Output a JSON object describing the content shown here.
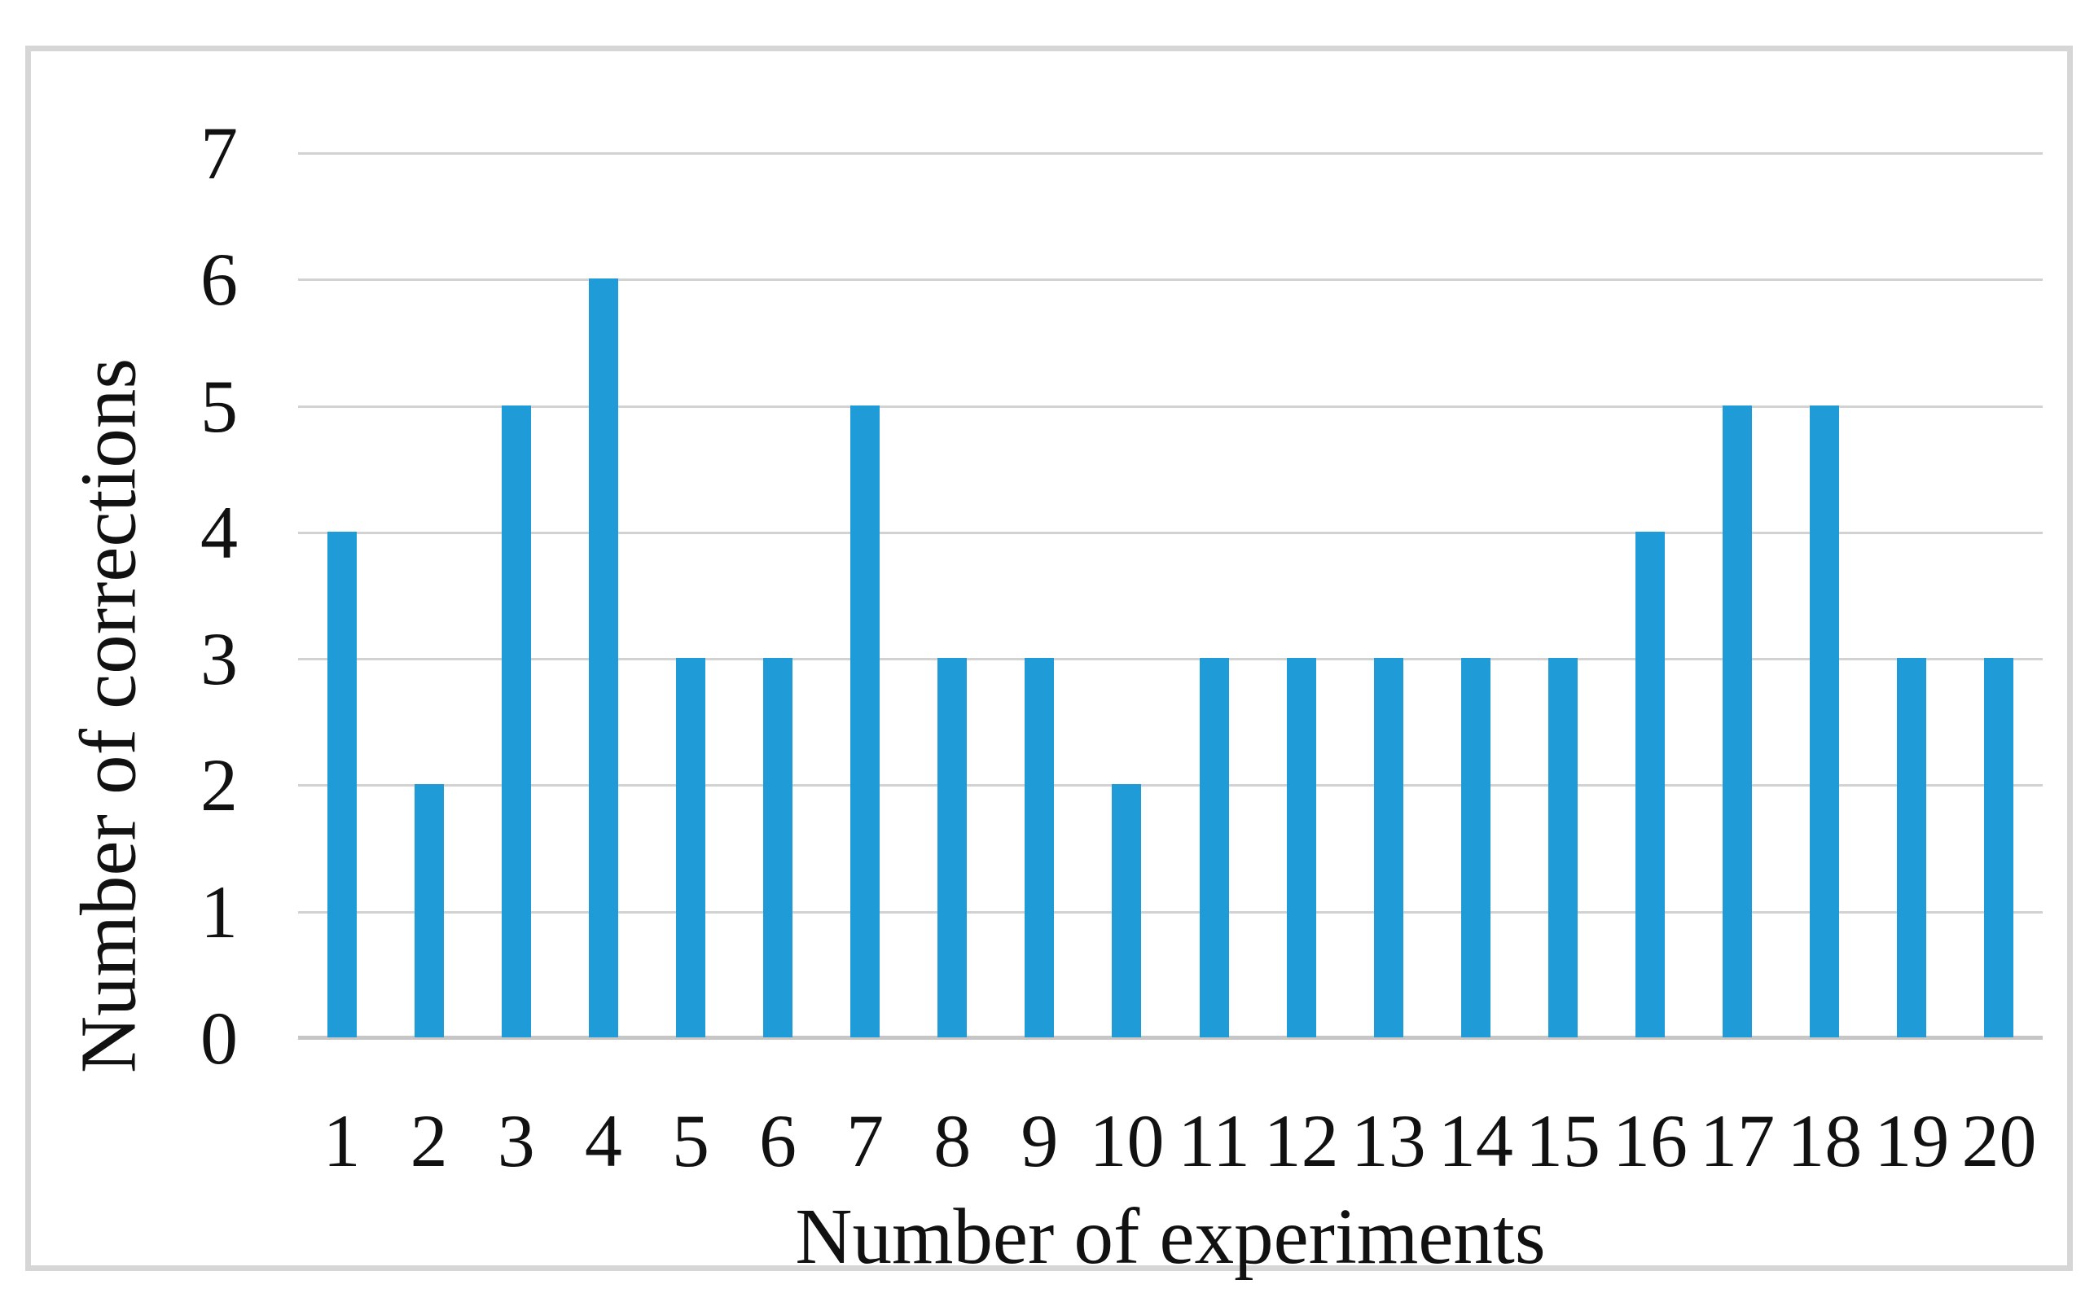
{
  "chart_data": {
    "type": "bar",
    "title": "",
    "xlabel": "Number of experiments",
    "ylabel": "Number of corrections",
    "categories": [
      "1",
      "2",
      "3",
      "4",
      "5",
      "6",
      "7",
      "8",
      "9",
      "10",
      "11",
      "12",
      "13",
      "14",
      "15",
      "16",
      "17",
      "18",
      "19",
      "20"
    ],
    "values": [
      4,
      2,
      5,
      6,
      3,
      3,
      5,
      3,
      3,
      2,
      3,
      3,
      3,
      3,
      3,
      4,
      5,
      5,
      3,
      3
    ],
    "ylim": [
      0,
      7
    ],
    "yticks": [
      0,
      1,
      2,
      3,
      4,
      5,
      6,
      7
    ],
    "grid": true,
    "legend": "none",
    "bar_color": "#1F9BD7",
    "gridline_color": "#D2D2D2",
    "axis_line_color": "#C6C6C6",
    "frame_border_color": "#D6D6D6"
  }
}
